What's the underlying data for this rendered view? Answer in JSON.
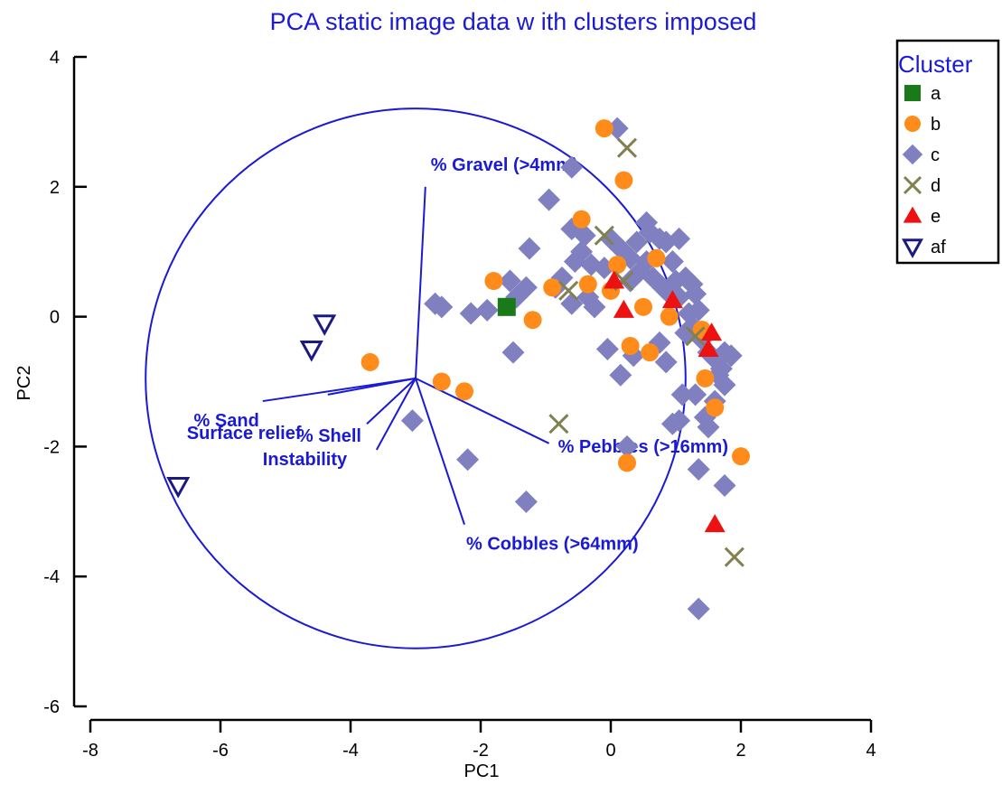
{
  "chart_data": {
    "type": "scatter",
    "title": "PCA static image data w ith clusters imposed",
    "xlabel": "PC1",
    "ylabel": "PC2",
    "xlim": [
      -8,
      4
    ],
    "ylim": [
      -6,
      4
    ],
    "xticks": [
      -8,
      -6,
      -4,
      -2,
      0,
      2,
      4
    ],
    "yticks": [
      -6,
      -4,
      -2,
      0,
      2,
      4
    ],
    "grid": false,
    "legend": {
      "title": "Cluster",
      "position": "top-right",
      "entries": [
        "a",
        "b",
        "c",
        "d",
        "e",
        "af"
      ]
    },
    "series": [
      {
        "name": "a",
        "marker": "square",
        "color": "#1a7a1a",
        "points": [
          [
            -1.6,
            0.15
          ]
        ]
      },
      {
        "name": "b",
        "marker": "circle",
        "color": "#ff8c1a",
        "points": [
          [
            -0.1,
            2.9
          ],
          [
            0.2,
            2.1
          ],
          [
            -0.45,
            1.5
          ],
          [
            -1.8,
            0.55
          ],
          [
            -0.35,
            0.5
          ],
          [
            0.1,
            0.8
          ],
          [
            0.7,
            0.9
          ],
          [
            0.0,
            0.4
          ],
          [
            -1.2,
            -0.05
          ],
          [
            -0.9,
            0.45
          ],
          [
            0.5,
            0.15
          ],
          [
            0.9,
            0.0
          ],
          [
            0.3,
            -0.45
          ],
          [
            0.6,
            -0.55
          ],
          [
            -3.7,
            -0.7
          ],
          [
            -2.6,
            -1.0
          ],
          [
            -2.25,
            -1.15
          ],
          [
            1.45,
            -0.95
          ],
          [
            1.6,
            -1.4
          ],
          [
            2.0,
            -2.15
          ],
          [
            0.25,
            -2.25
          ],
          [
            1.4,
            -0.2
          ]
        ]
      },
      {
        "name": "c",
        "marker": "diamond",
        "color": "#8080c0",
        "points": [
          [
            0.1,
            2.9
          ],
          [
            -0.6,
            2.3
          ],
          [
            -0.95,
            1.8
          ],
          [
            -0.6,
            1.35
          ],
          [
            -0.4,
            1.25
          ],
          [
            -0.45,
            1.0
          ],
          [
            -0.55,
            0.85
          ],
          [
            -0.75,
            0.6
          ],
          [
            -1.25,
            1.05
          ],
          [
            -1.3,
            0.45
          ],
          [
            -1.45,
            0.3
          ],
          [
            -1.55,
            0.55
          ],
          [
            -1.9,
            0.1
          ],
          [
            -2.15,
            0.05
          ],
          [
            -2.7,
            0.2
          ],
          [
            -2.6,
            0.15
          ],
          [
            -0.85,
            0.45
          ],
          [
            -0.3,
            0.8
          ],
          [
            -0.1,
            0.75
          ],
          [
            0.0,
            1.2
          ],
          [
            0.15,
            1.05
          ],
          [
            0.3,
            0.9
          ],
          [
            0.4,
            1.15
          ],
          [
            0.55,
            1.45
          ],
          [
            0.6,
            1.3
          ],
          [
            0.75,
            1.2
          ],
          [
            0.85,
            1.15
          ],
          [
            0.3,
            0.55
          ],
          [
            0.45,
            0.7
          ],
          [
            0.55,
            0.85
          ],
          [
            0.65,
            0.6
          ],
          [
            0.8,
            0.45
          ],
          [
            0.9,
            0.35
          ],
          [
            1.0,
            0.55
          ],
          [
            1.05,
            0.3
          ],
          [
            1.15,
            0.6
          ],
          [
            1.25,
            0.5
          ],
          [
            1.3,
            0.35
          ],
          [
            1.35,
            0.1
          ],
          [
            1.25,
            -0.15
          ],
          [
            1.15,
            -0.25
          ],
          [
            1.4,
            -0.35
          ],
          [
            1.5,
            -0.55
          ],
          [
            1.6,
            -0.65
          ],
          [
            1.75,
            -0.55
          ],
          [
            1.85,
            -0.6
          ],
          [
            1.65,
            -0.9
          ],
          [
            1.75,
            -1.05
          ],
          [
            1.6,
            -1.3
          ],
          [
            1.45,
            -1.55
          ],
          [
            1.3,
            -1.2
          ],
          [
            1.05,
            -1.6
          ],
          [
            0.95,
            -1.65
          ],
          [
            1.5,
            -1.7
          ],
          [
            1.1,
            -1.2
          ],
          [
            0.85,
            -0.7
          ],
          [
            0.75,
            -0.4
          ],
          [
            0.35,
            -0.6
          ],
          [
            0.15,
            -0.9
          ],
          [
            0.25,
            -2.0
          ],
          [
            -0.05,
            -0.5
          ],
          [
            -0.35,
            0.3
          ],
          [
            -0.6,
            0.2
          ],
          [
            -0.25,
            0.15
          ],
          [
            -1.5,
            -0.55
          ],
          [
            -2.2,
            -2.2
          ],
          [
            -1.3,
            -2.85
          ],
          [
            -3.05,
            -1.6
          ],
          [
            1.35,
            -2.35
          ],
          [
            1.75,
            -2.6
          ],
          [
            1.35,
            -4.5
          ],
          [
            1.7,
            -0.8
          ],
          [
            1.2,
            0.05
          ],
          [
            0.95,
            0.85
          ],
          [
            1.05,
            1.2
          ]
        ]
      },
      {
        "name": "d",
        "marker": "x",
        "color": "#808050",
        "points": [
          [
            0.25,
            2.6
          ],
          [
            -0.1,
            1.25
          ],
          [
            -0.65,
            0.4
          ],
          [
            -0.8,
            -1.65
          ],
          [
            1.9,
            -3.7
          ],
          [
            1.3,
            -0.3
          ],
          [
            0.2,
            0.55
          ]
        ]
      },
      {
        "name": "e",
        "marker": "triangle-up",
        "color": "#ee1111",
        "points": [
          [
            0.05,
            0.55
          ],
          [
            0.2,
            0.1
          ],
          [
            0.95,
            0.25
          ],
          [
            1.55,
            -0.25
          ],
          [
            1.5,
            -0.5
          ],
          [
            1.6,
            -3.2
          ]
        ]
      },
      {
        "name": "af",
        "marker": "triangle-down",
        "color": "#1a1a80",
        "points": [
          [
            -4.4,
            -0.1
          ],
          [
            -4.6,
            -0.5
          ],
          [
            -6.65,
            -2.6
          ]
        ]
      }
    ],
    "biplot": {
      "origin": [
        -3.0,
        -0.95
      ],
      "circle_radius": 4.15,
      "color": "#1a1ad6",
      "vectors": [
        {
          "label": "% Gravel (>4mm)",
          "end": [
            -2.85,
            2.0
          ]
        },
        {
          "label": "% Pebbles (>16mm)",
          "end": [
            -0.95,
            -1.95
          ]
        },
        {
          "label": "% Cobbles (>64mm)",
          "end": [
            -2.25,
            -3.2
          ]
        },
        {
          "label": "% Sand",
          "end": [
            -5.35,
            -1.3
          ]
        },
        {
          "label": "% Shell",
          "end": [
            -3.75,
            -1.65
          ]
        },
        {
          "label": "Instability",
          "end": [
            -3.6,
            -2.05
          ]
        },
        {
          "label": "Surface relief",
          "end": [
            -4.35,
            -1.2
          ]
        }
      ]
    }
  }
}
